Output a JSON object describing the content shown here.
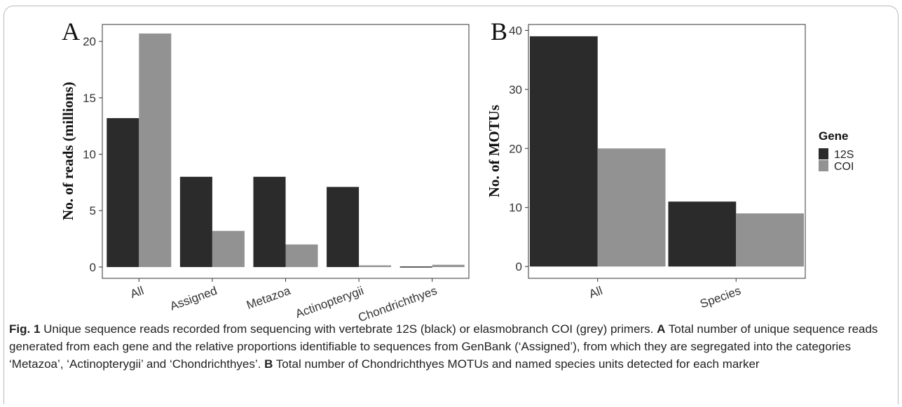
{
  "chart_data": [
    {
      "panel": "A",
      "type": "bar",
      "ylabel": "No. of reads (millions)",
      "categories": [
        "All",
        "Assigned",
        "Metazoa",
        "Actinopterygii",
        "Chondrichthyes"
      ],
      "series": [
        {
          "name": "12S",
          "color": "#2b2b2b",
          "values": [
            13.2,
            8.0,
            8.0,
            7.1,
            0.05
          ]
        },
        {
          "name": "COI",
          "color": "#929292",
          "values": [
            20.7,
            3.2,
            2.0,
            0.15,
            0.2
          ]
        }
      ],
      "ylim": [
        -1,
        21.5
      ],
      "yticks": [
        0,
        5,
        10,
        15,
        20
      ],
      "grid": false
    },
    {
      "panel": "B",
      "type": "bar",
      "ylabel": "No. of MOTUs",
      "categories": [
        "All",
        "Species"
      ],
      "series": [
        {
          "name": "12S",
          "color": "#2b2b2b",
          "values": [
            39,
            11
          ]
        },
        {
          "name": "COI",
          "color": "#929292",
          "values": [
            20,
            9
          ]
        }
      ],
      "ylim": [
        -2,
        41
      ],
      "yticks": [
        0,
        10,
        20,
        30,
        40
      ],
      "grid": false
    }
  ],
  "legend": {
    "title": "Gene",
    "items": [
      {
        "label": "12S",
        "color": "#2b2b2b"
      },
      {
        "label": "COI",
        "color": "#929292"
      }
    ],
    "placement": "right"
  },
  "caption": {
    "fig_label": "Fig. 1",
    "text_1": "  Unique sequence reads recorded from sequencing with vertebrate 12S (black) or elasmobranch COI (grey) primers. ",
    "a_label": "A",
    "text_2": " Total number of unique sequence reads generated from each gene and the relative proportions identifiable to sequences from GenBank (‘Assigned’), from which they are segregated into the categories ‘Metazoa’, ‘Actinopterygii’ and ‘Chondrichthyes’. ",
    "b_label": "B",
    "text_3": " Total number of Chondrichthyes MOTUs and named species units detected for each marker"
  }
}
